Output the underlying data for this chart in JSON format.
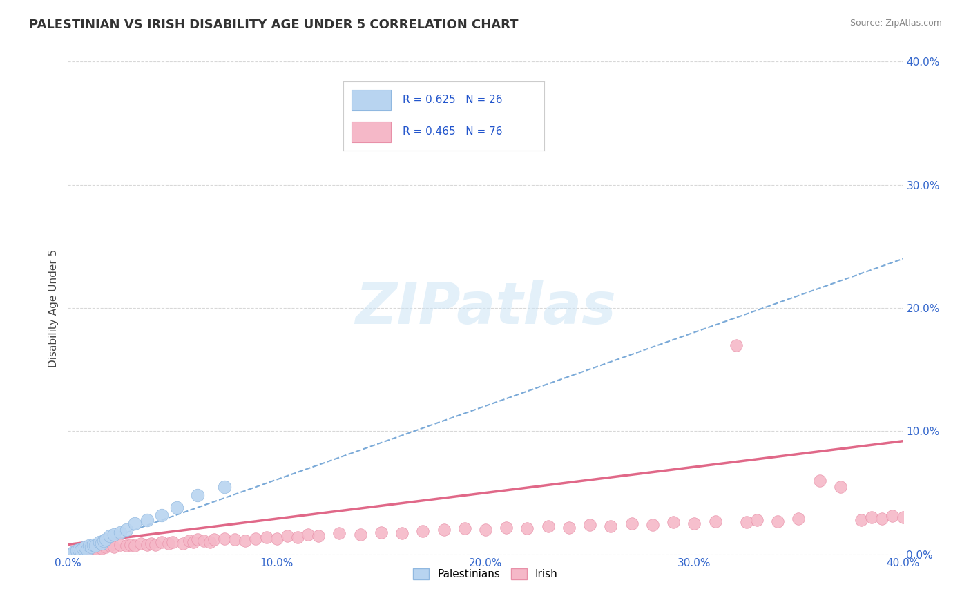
{
  "title": "PALESTINIAN VS IRISH DISABILITY AGE UNDER 5 CORRELATION CHART",
  "source": "Source: ZipAtlas.com",
  "ylabel": "Disability Age Under 5",
  "xlim": [
    0.0,
    0.4
  ],
  "ylim": [
    0.0,
    0.4
  ],
  "xticks": [
    0.0,
    0.1,
    0.2,
    0.3,
    0.4
  ],
  "yticks": [
    0.0,
    0.1,
    0.2,
    0.3,
    0.4
  ],
  "xtick_labels": [
    "0.0%",
    "10.0%",
    "20.0%",
    "30.0%",
    "40.0%"
  ],
  "ytick_labels": [
    "0.0%",
    "10.0%",
    "20.0%",
    "30.0%",
    "40.0%"
  ],
  "palestinians": {
    "R": 0.625,
    "N": 26,
    "color": "#b8d4f0",
    "edge_color": "#90b8e0",
    "line_color": "#7baad8",
    "line_style": "--",
    "x": [
      0.002,
      0.003,
      0.004,
      0.005,
      0.006,
      0.007,
      0.008,
      0.009,
      0.01,
      0.011,
      0.012,
      0.013,
      0.015,
      0.016,
      0.017,
      0.018,
      0.02,
      0.022,
      0.025,
      0.028,
      0.032,
      0.038,
      0.045,
      0.052,
      0.062,
      0.075
    ],
    "y": [
      0.001,
      0.002,
      0.003,
      0.004,
      0.003,
      0.005,
      0.006,
      0.004,
      0.007,
      0.006,
      0.008,
      0.007,
      0.01,
      0.009,
      0.011,
      0.012,
      0.015,
      0.016,
      0.018,
      0.02,
      0.025,
      0.028,
      0.032,
      0.038,
      0.048,
      0.055
    ],
    "trend_x": [
      0.0,
      0.4
    ],
    "trend_y": [
      0.001,
      0.24
    ]
  },
  "irish": {
    "R": 0.465,
    "N": 76,
    "color": "#f5b8c8",
    "edge_color": "#e890a8",
    "line_color": "#e06888",
    "line_style": "-",
    "x": [
      0.002,
      0.003,
      0.004,
      0.005,
      0.006,
      0.007,
      0.008,
      0.009,
      0.01,
      0.011,
      0.012,
      0.014,
      0.015,
      0.016,
      0.018,
      0.02,
      0.022,
      0.025,
      0.028,
      0.03,
      0.032,
      0.035,
      0.038,
      0.04,
      0.042,
      0.045,
      0.048,
      0.05,
      0.055,
      0.058,
      0.06,
      0.062,
      0.065,
      0.068,
      0.07,
      0.075,
      0.08,
      0.085,
      0.09,
      0.095,
      0.1,
      0.105,
      0.11,
      0.115,
      0.12,
      0.13,
      0.14,
      0.15,
      0.16,
      0.17,
      0.18,
      0.19,
      0.2,
      0.21,
      0.22,
      0.23,
      0.24,
      0.25,
      0.26,
      0.27,
      0.28,
      0.29,
      0.3,
      0.31,
      0.32,
      0.325,
      0.33,
      0.34,
      0.35,
      0.36,
      0.37,
      0.38,
      0.385,
      0.39,
      0.395,
      0.4
    ],
    "y": [
      0.001,
      0.002,
      0.001,
      0.003,
      0.002,
      0.003,
      0.004,
      0.003,
      0.005,
      0.004,
      0.005,
      0.004,
      0.006,
      0.005,
      0.006,
      0.007,
      0.006,
      0.008,
      0.007,
      0.008,
      0.007,
      0.009,
      0.008,
      0.009,
      0.008,
      0.01,
      0.009,
      0.01,
      0.009,
      0.011,
      0.01,
      0.012,
      0.011,
      0.01,
      0.012,
      0.013,
      0.012,
      0.011,
      0.013,
      0.014,
      0.013,
      0.015,
      0.014,
      0.016,
      0.015,
      0.017,
      0.016,
      0.018,
      0.017,
      0.019,
      0.02,
      0.021,
      0.02,
      0.022,
      0.021,
      0.023,
      0.022,
      0.024,
      0.023,
      0.025,
      0.024,
      0.026,
      0.025,
      0.027,
      0.17,
      0.026,
      0.028,
      0.027,
      0.029,
      0.06,
      0.055,
      0.028,
      0.03,
      0.029,
      0.031,
      0.03
    ],
    "trend_x": [
      0.0,
      0.4
    ],
    "trend_y": [
      0.008,
      0.092
    ]
  },
  "background_color": "#ffffff",
  "grid_color": "#d8d8d8",
  "legend_R_color": "#2255cc",
  "title_fontsize": 13,
  "axis_label_fontsize": 11,
  "tick_fontsize": 11,
  "tick_color": "#3366cc"
}
